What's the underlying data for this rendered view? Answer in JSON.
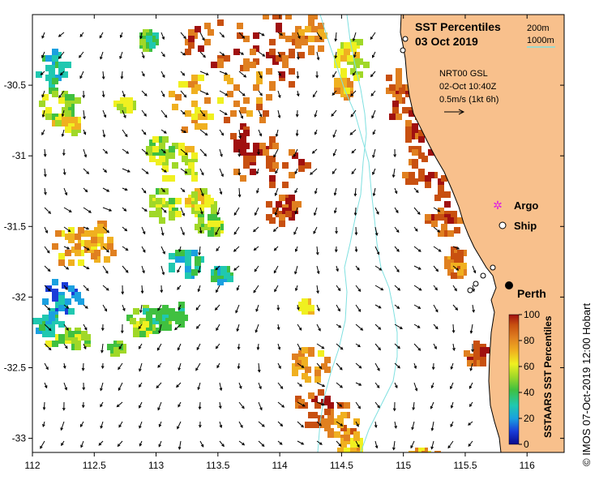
{
  "title": {
    "line1": "SST Percentiles",
    "line2": "03 Oct 2019"
  },
  "bathymetry_legend": {
    "contour1": "200m",
    "contour2": "1000m",
    "color": "#7fe0e0"
  },
  "current_info": {
    "source": "NRT00 GSL",
    "time": "02-Oct 10:40Z",
    "scale": "0.5m/s (1kt 6h)"
  },
  "legend": {
    "argo": "Argo",
    "ship": "Ship"
  },
  "place": {
    "name": "Perth"
  },
  "colorbar": {
    "title": "SSTAARS SST Percentiles",
    "ticks": [
      "0",
      "20",
      "40",
      "60",
      "80",
      "100"
    ],
    "colors": [
      "#0a0a8c",
      "#1a3cd8",
      "#1aa0e0",
      "#20c8b0",
      "#40c040",
      "#a0d828",
      "#f0f020",
      "#f0b020",
      "#e08020",
      "#c85010",
      "#a01010"
    ]
  },
  "axes": {
    "x_ticks": [
      "112",
      "112.5",
      "113",
      "113.5",
      "114",
      "114.5",
      "115",
      "115.5",
      "116"
    ],
    "y_ticks": [
      "-30.5",
      "-31",
      "-31.5",
      "-32",
      "-32.5",
      "-33"
    ],
    "lon_range": [
      112.0,
      116.3
    ],
    "lat_range": [
      -33.1,
      -30.0
    ]
  },
  "credit": "© IMOS 07-Oct-2019 12:00 Hobart",
  "colors": {
    "land": "#f8c08c",
    "coast": "#000000"
  }
}
